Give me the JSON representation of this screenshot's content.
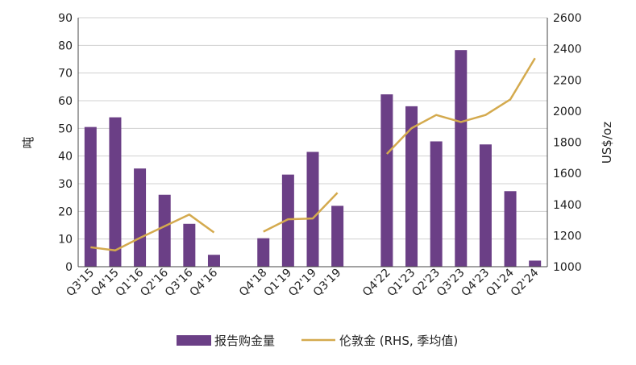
{
  "chart_data": {
    "type": "bar",
    "categories": [
      "Q3'15",
      "Q4'15",
      "Q1'16",
      "Q2'16",
      "Q3'16",
      "Q4'16",
      "",
      "Q4'18",
      "Q1'19",
      "Q2'19",
      "Q3'19",
      "",
      "Q4'22",
      "Q1'23",
      "Q2'23",
      "Q3'23",
      "Q4'23",
      "Q1'24",
      "Q2'24"
    ],
    "series": [
      {
        "name": "报告购金量",
        "type": "bar",
        "axis": "left",
        "color": "#6B3F86",
        "values": [
          50.5,
          54,
          35.5,
          26,
          15.5,
          4.3,
          null,
          10.3,
          33.3,
          41.5,
          22,
          null,
          62.3,
          58,
          45.3,
          78.3,
          44.2,
          27.3,
          2.2
        ]
      },
      {
        "name": "伦敦金 (RHS, 季均值)",
        "type": "line",
        "axis": "right",
        "color": "#D4AA4E",
        "values": [
          1125,
          1105,
          1185,
          1260,
          1335,
          1220,
          null,
          1225,
          1305,
          1310,
          1475,
          null,
          1725,
          1890,
          1975,
          1930,
          1975,
          2075,
          2340
        ]
      }
    ],
    "ylabel": "吨",
    "y2label": "US$/oz",
    "ylim": [
      0,
      90
    ],
    "y2lim": [
      1000,
      2600
    ],
    "yticks": [
      0,
      10,
      20,
      30,
      40,
      50,
      60,
      70,
      80,
      90
    ],
    "y2ticks": [
      1000,
      1200,
      1400,
      1600,
      1800,
      2000,
      2200,
      2400,
      2600
    ],
    "grid": true,
    "legend_position": "bottom"
  }
}
